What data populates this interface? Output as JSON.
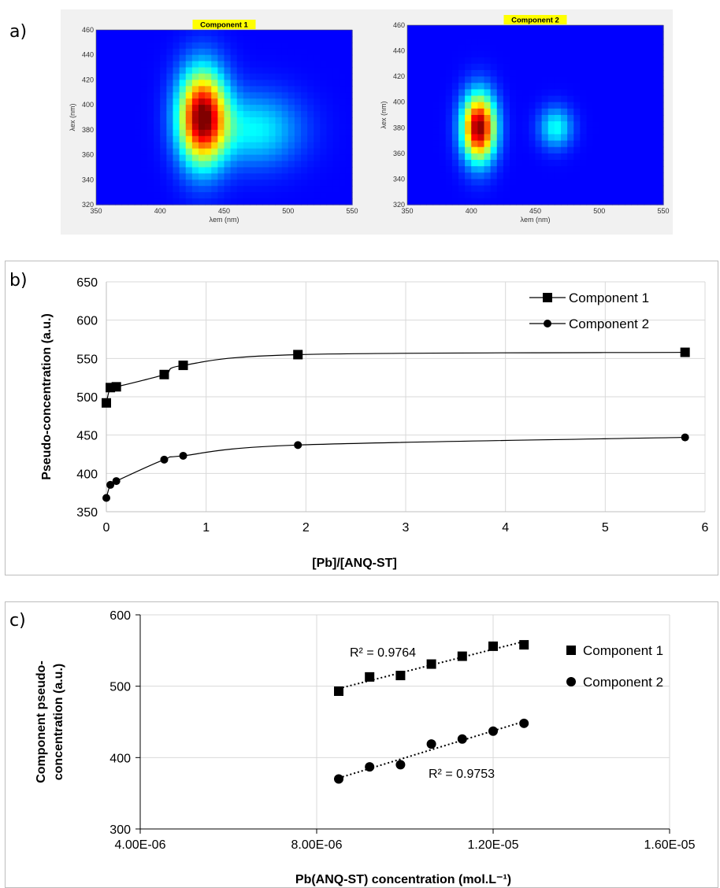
{
  "panel_labels": {
    "a": "a)",
    "b": "b)",
    "c": "c)"
  },
  "chart_data": [
    {
      "type": "heatmap",
      "title": "Component 1",
      "xlabel": "λem (nm)",
      "ylabel": "λex (nm)",
      "xlim": [
        350,
        550
      ],
      "ylim": [
        320,
        460
      ],
      "x_ticks": [
        "350",
        "400",
        "450",
        "500",
        "550"
      ],
      "y_ticks": [
        "320",
        "340",
        "360",
        "380",
        "400",
        "420",
        "440",
        "460"
      ],
      "title_bg_color": "#ffff00",
      "colormap": "jet",
      "peaks": [
        {
          "em": 433,
          "ex": 390,
          "sigma_em": 13,
          "sigma_ex": 26,
          "intensity": 1.0
        },
        {
          "em": 475,
          "ex": 380,
          "sigma_em": 24,
          "sigma_ex": 20,
          "intensity": 0.28
        }
      ]
    },
    {
      "type": "heatmap",
      "title": "Component 2",
      "xlabel": "λem (nm)",
      "ylabel": "λex (nm)",
      "xlim": [
        350,
        550
      ],
      "ylim": [
        320,
        460
      ],
      "x_ticks": [
        "350",
        "400",
        "450",
        "500",
        "550"
      ],
      "y_ticks": [
        "320",
        "340",
        "360",
        "380",
        "400",
        "420",
        "440",
        "460"
      ],
      "title_bg_color": "#ffff00",
      "colormap": "jet",
      "peaks": [
        {
          "em": 406,
          "ex": 380,
          "sigma_em": 9,
          "sigma_ex": 18,
          "intensity": 1.0
        },
        {
          "em": 466,
          "ex": 380,
          "sigma_em": 9,
          "sigma_ex": 11,
          "intensity": 0.3
        }
      ]
    },
    {
      "type": "line",
      "xlabel": "[Pb]/[ANQ-ST]",
      "ylabel": "Pseudo-concentration (a.u.)",
      "xlim": [
        0,
        6
      ],
      "ylim": [
        350,
        650
      ],
      "x_ticks": [
        "0",
        "1",
        "2",
        "3",
        "4",
        "5",
        "6"
      ],
      "y_ticks": [
        "350",
        "400",
        "450",
        "500",
        "550",
        "600",
        "650"
      ],
      "grid": true,
      "legend_position": "top-right",
      "series": [
        {
          "name": "Component 1",
          "marker": "square",
          "x": [
            0,
            0.04,
            0.1,
            0.58,
            0.77,
            1.92,
            5.8
          ],
          "y": [
            492,
            512,
            513,
            529,
            541,
            555,
            558
          ]
        },
        {
          "name": "Component 2",
          "marker": "circle",
          "x": [
            0,
            0.04,
            0.1,
            0.58,
            0.77,
            1.92,
            5.8
          ],
          "y": [
            368,
            385,
            390,
            418,
            423,
            437,
            447
          ]
        }
      ]
    },
    {
      "type": "scatter",
      "xlabel": "Pb(ANQ-ST) concentration (mol.L⁻¹)",
      "ylabel_line1": "Component  pseudo-",
      "ylabel_line2": "concentration (a.u.)",
      "xlim": [
        4e-06,
        1.6e-05
      ],
      "ylim": [
        300,
        600
      ],
      "x_ticks": [
        "4.00E-06",
        "8.00E-06",
        "1.20E-05",
        "1.60E-05"
      ],
      "y_ticks": [
        "300",
        "400",
        "500",
        "600"
      ],
      "grid": true,
      "legend_position": "right",
      "series": [
        {
          "name": "Component 1",
          "marker": "square",
          "trendline": "linear",
          "r2_label": "R² = 0.9764",
          "x": [
            8.5e-06,
            9.2e-06,
            9.9e-06,
            1.06e-05,
            1.13e-05,
            1.2e-05,
            1.27e-05
          ],
          "y": [
            493,
            513,
            515,
            531,
            542,
            556,
            558
          ]
        },
        {
          "name": "Component 2",
          "marker": "circle",
          "trendline": "linear",
          "r2_label": "R² = 0.9753",
          "x": [
            8.5e-06,
            9.2e-06,
            9.9e-06,
            1.06e-05,
            1.13e-05,
            1.2e-05,
            1.27e-05
          ],
          "y": [
            370,
            387,
            390,
            419,
            426,
            437,
            448
          ]
        }
      ]
    }
  ]
}
